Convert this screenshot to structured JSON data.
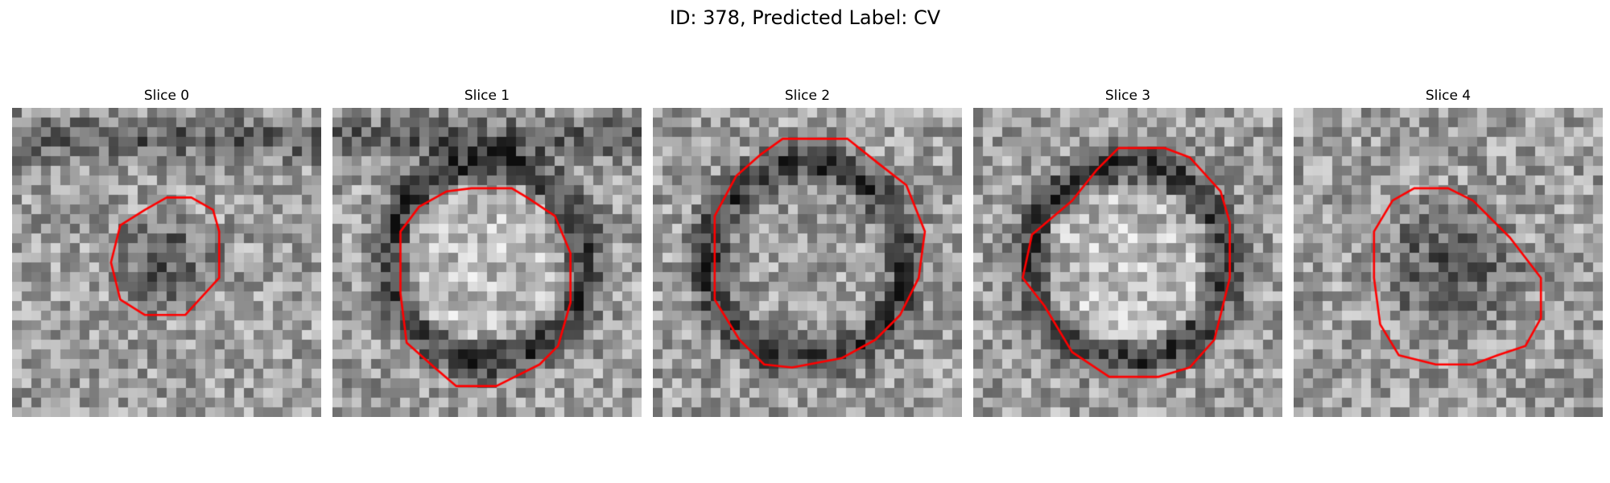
{
  "figure": {
    "title": "ID: 378, Predicted Label: CV"
  },
  "slices": [
    {
      "title": "Slice 0",
      "seed": 11,
      "ring": false,
      "dark_band": "top",
      "contour": "small",
      "blob": "dark"
    },
    {
      "title": "Slice 1",
      "seed": 23,
      "ring": true,
      "dark_band": "top",
      "contour": "large",
      "blob": "bright"
    },
    {
      "title": "Slice 2",
      "seed": 37,
      "ring": true,
      "dark_band": "none",
      "contour": "xlarge",
      "blob": "mixed"
    },
    {
      "title": "Slice 3",
      "seed": 41,
      "ring": true,
      "dark_band": "none",
      "contour": "xlarge2",
      "blob": "bright"
    },
    {
      "title": "Slice 4",
      "seed": 53,
      "ring": false,
      "dark_band": "none",
      "contour": "medium",
      "blob": "dark"
    }
  ],
  "colors": {
    "contour": "#ff0000",
    "background": "#ffffff"
  },
  "colormap": "gray"
}
